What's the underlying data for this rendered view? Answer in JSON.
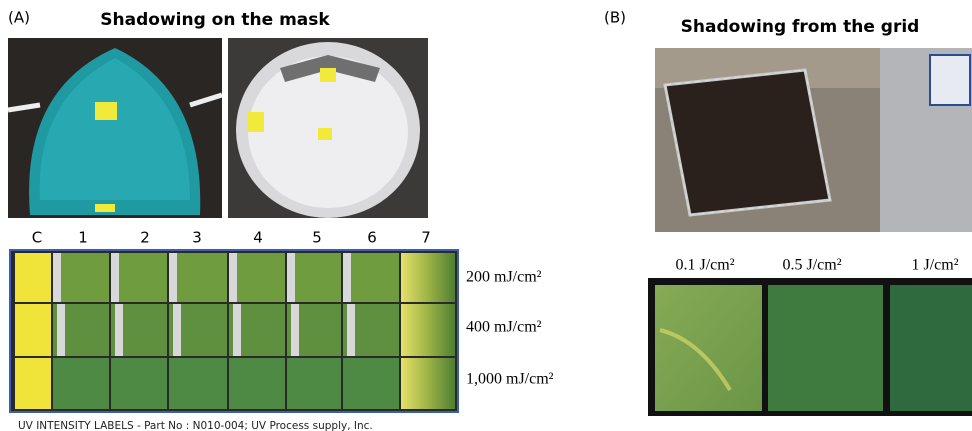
{
  "panel_a": {
    "label": "(A)",
    "title": "Shadowing on the mask",
    "columns": [
      "C",
      "1",
      "2",
      "3",
      "4",
      "5",
      "6",
      "7"
    ],
    "rows": [
      "200 mJ/cm²",
      "400 mJ/cm²",
      "1,000 mJ/cm²"
    ],
    "caption": "UV INTENSITY LABELS - Part No : N010-004; UV Process supply, Inc."
  },
  "panel_b": {
    "label": "(B)",
    "title": "Shadowing from the grid",
    "columns": [
      "0.1 J/cm²",
      "0.5 J/cm²",
      "1 J/cm²"
    ]
  }
}
